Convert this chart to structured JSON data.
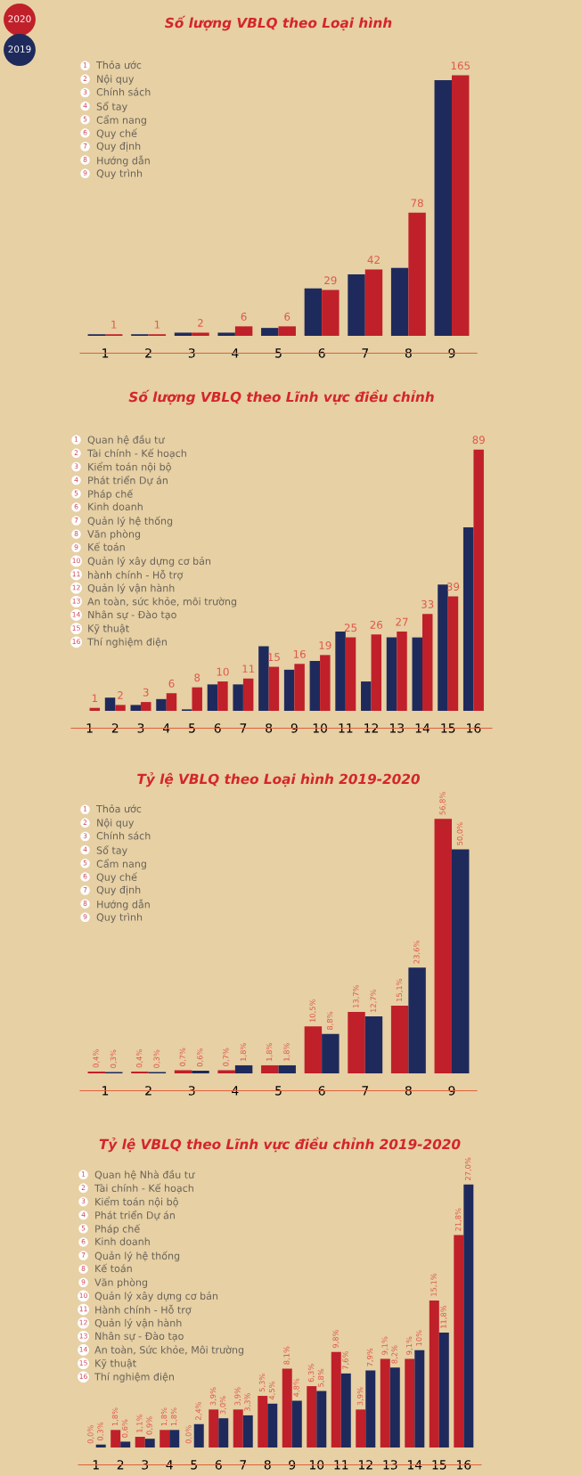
{
  "chart_data": [
    {
      "type": "bar",
      "title": "Số lượng VBLQ theo Loại hình",
      "legend": "top left",
      "categories": [
        "1",
        "2",
        "3",
        "4",
        "5",
        "6",
        "7",
        "8",
        "9"
      ],
      "series": [
        {
          "name": "2019",
          "color": "#1f2a5c",
          "values": [
            1,
            1,
            2,
            2,
            5,
            30,
            39,
            43,
            162
          ]
        },
        {
          "name": "2020",
          "color": "#c0202a",
          "values": [
            1,
            1,
            2,
            6,
            6,
            29,
            42,
            78,
            165
          ],
          "value_labels": [
            "1",
            "1",
            "2",
            "6",
            "6",
            "29",
            "42",
            "78",
            "165"
          ]
        }
      ],
      "annotations": [
        "1 Thỏa ước",
        "2 Nội quy",
        "3 Chính sách",
        "4 Sổ tay",
        "5 Cẩm nang",
        "6 Quy chế",
        "7 Quy định",
        "8 Hướng dẫn",
        "9 Quy trình"
      ]
    },
    {
      "type": "bar",
      "title": "Số lượng VBLQ theo Lĩnh vực điều chỉnh",
      "categories": [
        "1",
        "2",
        "3",
        "4",
        "5",
        "6",
        "7",
        "8",
        "9",
        "10",
        "11",
        "12",
        "13",
        "14",
        "15",
        "16"
      ],
      "series": [
        {
          "color": "#1f2a5c",
          "values": [
            0,
            4.5,
            2,
            4,
            0.5,
            9,
            9,
            22,
            14,
            17,
            27,
            10,
            25,
            25,
            43,
            62.5
          ]
        },
        {
          "color": "#c0202a",
          "values": [
            1,
            2,
            3,
            6,
            8,
            10,
            11,
            15,
            16,
            19,
            25,
            26,
            27,
            33,
            39,
            89
          ],
          "value_labels": [
            "1",
            "2",
            "3",
            "6",
            "8",
            "10",
            "11",
            "15",
            "16",
            "19",
            "25",
            "26",
            "27",
            "33",
            "39",
            "89"
          ]
        }
      ],
      "annotations": [
        "1 Quan hệ đầu tư",
        "2 Tài chính - Kế hoạch",
        "3 Kiểm toán nội bộ",
        "4 Phát triển Dự án",
        "5 Pháp chế",
        "6 Kinh doanh",
        "7 Quản lý hệ thống",
        "8 Văn phòng",
        "9 Kế toán",
        "10 Quản lý xây dựng cơ bản",
        "11 hành chính - Hỗ trợ",
        "12 Quản lý vận hành",
        "13 An toàn, sức khỏe, môi trường",
        "14 Nhân sự - Đào tạo",
        "15 Kỹ thuật",
        "16 Thí nghiệm điện"
      ]
    },
    {
      "type": "bar",
      "title": "Tỷ lệ VBLQ theo Loại hình 2019-2020",
      "categories": [
        "1",
        "2",
        "3",
        "4",
        "5",
        "6",
        "7",
        "8",
        "9"
      ],
      "series": [
        {
          "color": "#c0202a",
          "values": [
            0.4,
            0.4,
            0.7,
            0.7,
            1.8,
            10.5,
            13.7,
            15.1,
            56.8
          ],
          "value_labels": [
            "0,4%",
            "0,4%",
            "0,7%",
            "0,7%",
            "1,8%",
            "10,5%",
            "13,7%",
            "15,1%",
            "56,8%"
          ]
        },
        {
          "color": "#1f2a5c",
          "values": [
            0.3,
            0.3,
            0.6,
            1.8,
            1.8,
            8.8,
            12.7,
            23.6,
            50.0
          ],
          "value_labels": [
            "0,3%",
            "0,3%",
            "0,6%",
            "1,8%",
            "1,8%",
            "8,8%",
            "12,7%",
            "23,6%",
            "50,0%"
          ]
        }
      ],
      "annotations": [
        "1 Thỏa ước",
        "2 Nội quy",
        "3 Chính sách",
        "4 Sổ tay",
        "5 Cẩm nang",
        "6 Quy chế",
        "7 Quy định",
        "8 Hướng dẫn",
        "9 Quy trình"
      ]
    },
    {
      "type": "bar",
      "title": "Tỷ lệ VBLQ theo Lĩnh vực điều chỉnh 2019-2020",
      "categories": [
        "1",
        "2",
        "3",
        "4",
        "5",
        "6",
        "7",
        "8",
        "9",
        "10",
        "11",
        "12",
        "13",
        "14",
        "15",
        "16"
      ],
      "series": [
        {
          "color": "#c0202a",
          "values": [
            0.0,
            1.8,
            1.1,
            1.8,
            0.0,
            3.9,
            3.9,
            5.3,
            8.1,
            6.3,
            9.8,
            3.9,
            9.1,
            9.1,
            15.1,
            21.8
          ],
          "value_labels": [
            "0,0%",
            "1,8%",
            "1,1%",
            "1,8%",
            "0,0%",
            "3,9%",
            "3,9%",
            "5,3%",
            "8,1%",
            "6,3%",
            "9,8%",
            "3,9%",
            "9,1%",
            "9,1%",
            "15,1%",
            "21,8%"
          ]
        },
        {
          "color": "#1f2a5c",
          "values": [
            0.3,
            0.6,
            0.9,
            1.8,
            2.4,
            3.0,
            3.3,
            4.5,
            4.8,
            5.8,
            7.6,
            7.9,
            8.2,
            10,
            11.8,
            27.0
          ],
          "value_labels": [
            "0,3%",
            "0,6%",
            "0,9%",
            "1,8%",
            "2,4%",
            "3,0%",
            "3,3%",
            "4,5%",
            "4,8%",
            "5,8%",
            "7,6%",
            "7,9%",
            "8,2%",
            "10%",
            "11,8%",
            "27,0%"
          ]
        }
      ],
      "annotations": [
        "1 Quan hệ Nhà đầu tư",
        "2 Tài chính - Kế hoạch",
        "3 Kiểm toán nội bộ",
        "4 Phát triển Dự án",
        "5 Pháp chế",
        "6 Kinh doanh",
        "7 Quản lý hệ thống",
        "8 Kế toán",
        "9 Văn phòng",
        "10 Quản lý xây dựng cơ bản",
        "11 Hành chính - Hỗ trợ",
        "12 Quản lý vận hành",
        "13 Nhân sự - Đào tạo",
        "14 An toàn, Sức khỏe, Môi trường",
        "15 Kỹ thuật",
        "16 Thí nghiệm điện"
      ]
    }
  ]
}
